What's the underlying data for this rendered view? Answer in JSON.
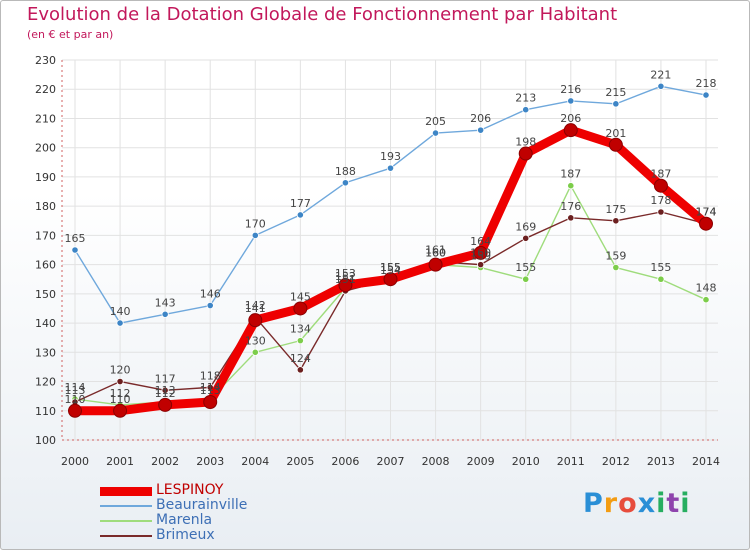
{
  "header": {
    "title": "Evolution de la Dotation Globale de Fonctionnement par Habitant",
    "subtitle": "(en € et par an)"
  },
  "logo": {
    "text": "Proxiti",
    "letters": [
      "P",
      "r",
      "o",
      "x",
      "i",
      "t",
      "i"
    ],
    "colors": [
      "#2a8fd6",
      "#f39c12",
      "#e74c3c",
      "#2a8fd6",
      "#27ae60",
      "#8e44ad",
      "#27ae60"
    ]
  },
  "chart_data": {
    "type": "line",
    "x": [
      2000,
      2001,
      2002,
      2003,
      2004,
      2005,
      2006,
      2007,
      2008,
      2009,
      2010,
      2011,
      2012,
      2013,
      2014
    ],
    "xlabels": [
      "2000",
      "2001",
      "2002",
      "2003",
      "2004",
      "2005",
      "2006",
      "2007",
      "2008",
      "2009",
      "2010",
      "2011",
      "2012",
      "2013",
      "2014"
    ],
    "ylim": [
      100,
      230
    ],
    "yticks": [
      100,
      110,
      120,
      130,
      140,
      150,
      160,
      170,
      180,
      190,
      200,
      210,
      220,
      230
    ],
    "grid": true,
    "legend_position": "bottom-left",
    "series": [
      {
        "name": "LESPINOY",
        "color": "#ee0000",
        "marker_color": "#c00000",
        "values": [
          110,
          110,
          112,
          113,
          141,
          145,
          153,
          155,
          160,
          164,
          198,
          206,
          201,
          187,
          174
        ]
      },
      {
        "name": "Beaurainville",
        "color": "#6fa8dc",
        "marker_color": "#3d85c6",
        "values": [
          165,
          140,
          143,
          146,
          170,
          177,
          188,
          193,
          205,
          206,
          213,
          216,
          215,
          221,
          218
        ]
      },
      {
        "name": "Marenla",
        "color": "#9fdc7c",
        "marker_color": "#7ccd4a",
        "values": [
          114,
          112,
          113,
          114,
          130,
          134,
          152,
          154,
          160,
          159,
          155,
          187,
          159,
          155,
          148
        ]
      },
      {
        "name": "Brimeux",
        "color": "#7a2a2a",
        "marker_color": "#6b1f1f",
        "values": [
          113,
          120,
          117,
          118,
          142,
          124,
          151,
          155,
          161,
          160,
          169,
          176,
          175,
          178,
          174
        ]
      }
    ]
  }
}
